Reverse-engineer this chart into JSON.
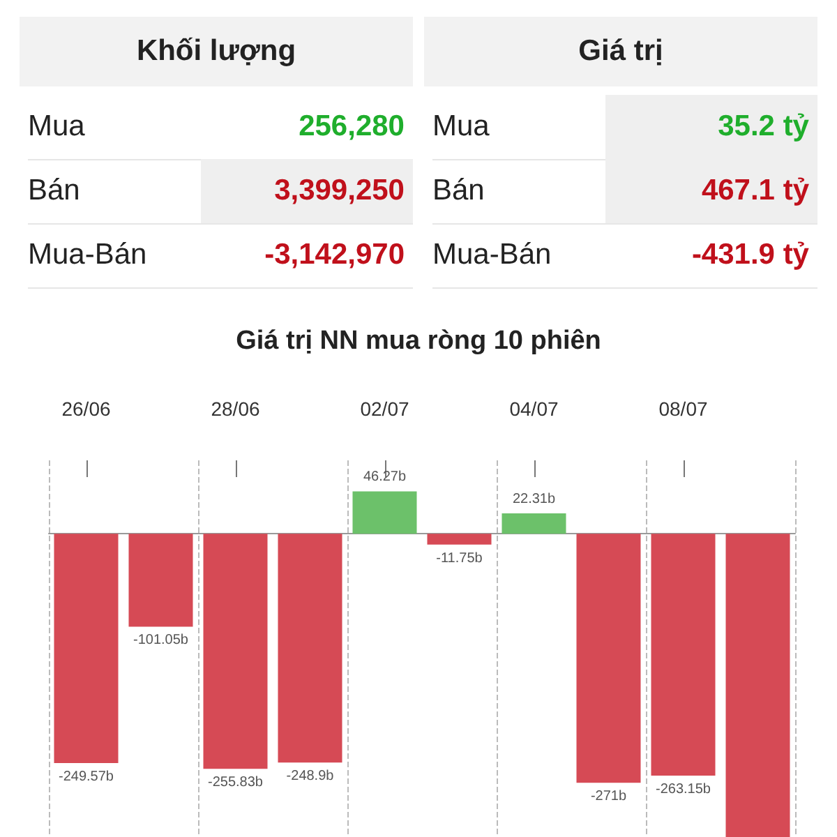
{
  "chart_data": [
    {
      "type": "other",
      "annotations": [
        "Khối lượng",
        "Giá trị",
        "Mua",
        "256,280",
        "Mua",
        "35.2 tỷ",
        "Bán",
        "3,399,250",
        "Bán",
        "467.1 tỷ",
        "Mua-Bán",
        "-3,142,970",
        "Mua-Bán",
        "-431.9 tỷ"
      ]
    },
    {
      "type": "bar",
      "title": "Giá trị NN mua ròng 10 phiên",
      "categories": [
        "26/06",
        null,
        "28/06",
        null,
        "02/07",
        null,
        "04/07",
        null,
        "08/07",
        null
      ],
      "values": [
        -249.57,
        -101.05,
        -255.83,
        -248.9,
        46.27,
        -11.75,
        22.31,
        -271,
        -263.15,
        -330
      ],
      "colors": [
        "#d64a55",
        "#d64a55",
        "#d64a55",
        "#d64a55",
        "#6cc16a",
        "#d64a55",
        "#6cc16a",
        "#d64a55",
        "#d64a55",
        "#d64a55"
      ],
      "value_labels": [
        "-249.57b",
        "-101.05b",
        "-255.83b",
        "-248.9b",
        "46.27b",
        "-11.75b",
        "22.31b",
        "-271b",
        "-263.15b",
        null
      ],
      "ylim": [
        -330,
        80
      ],
      "grid": "x",
      "tick_labels": "x"
    }
  ]
}
